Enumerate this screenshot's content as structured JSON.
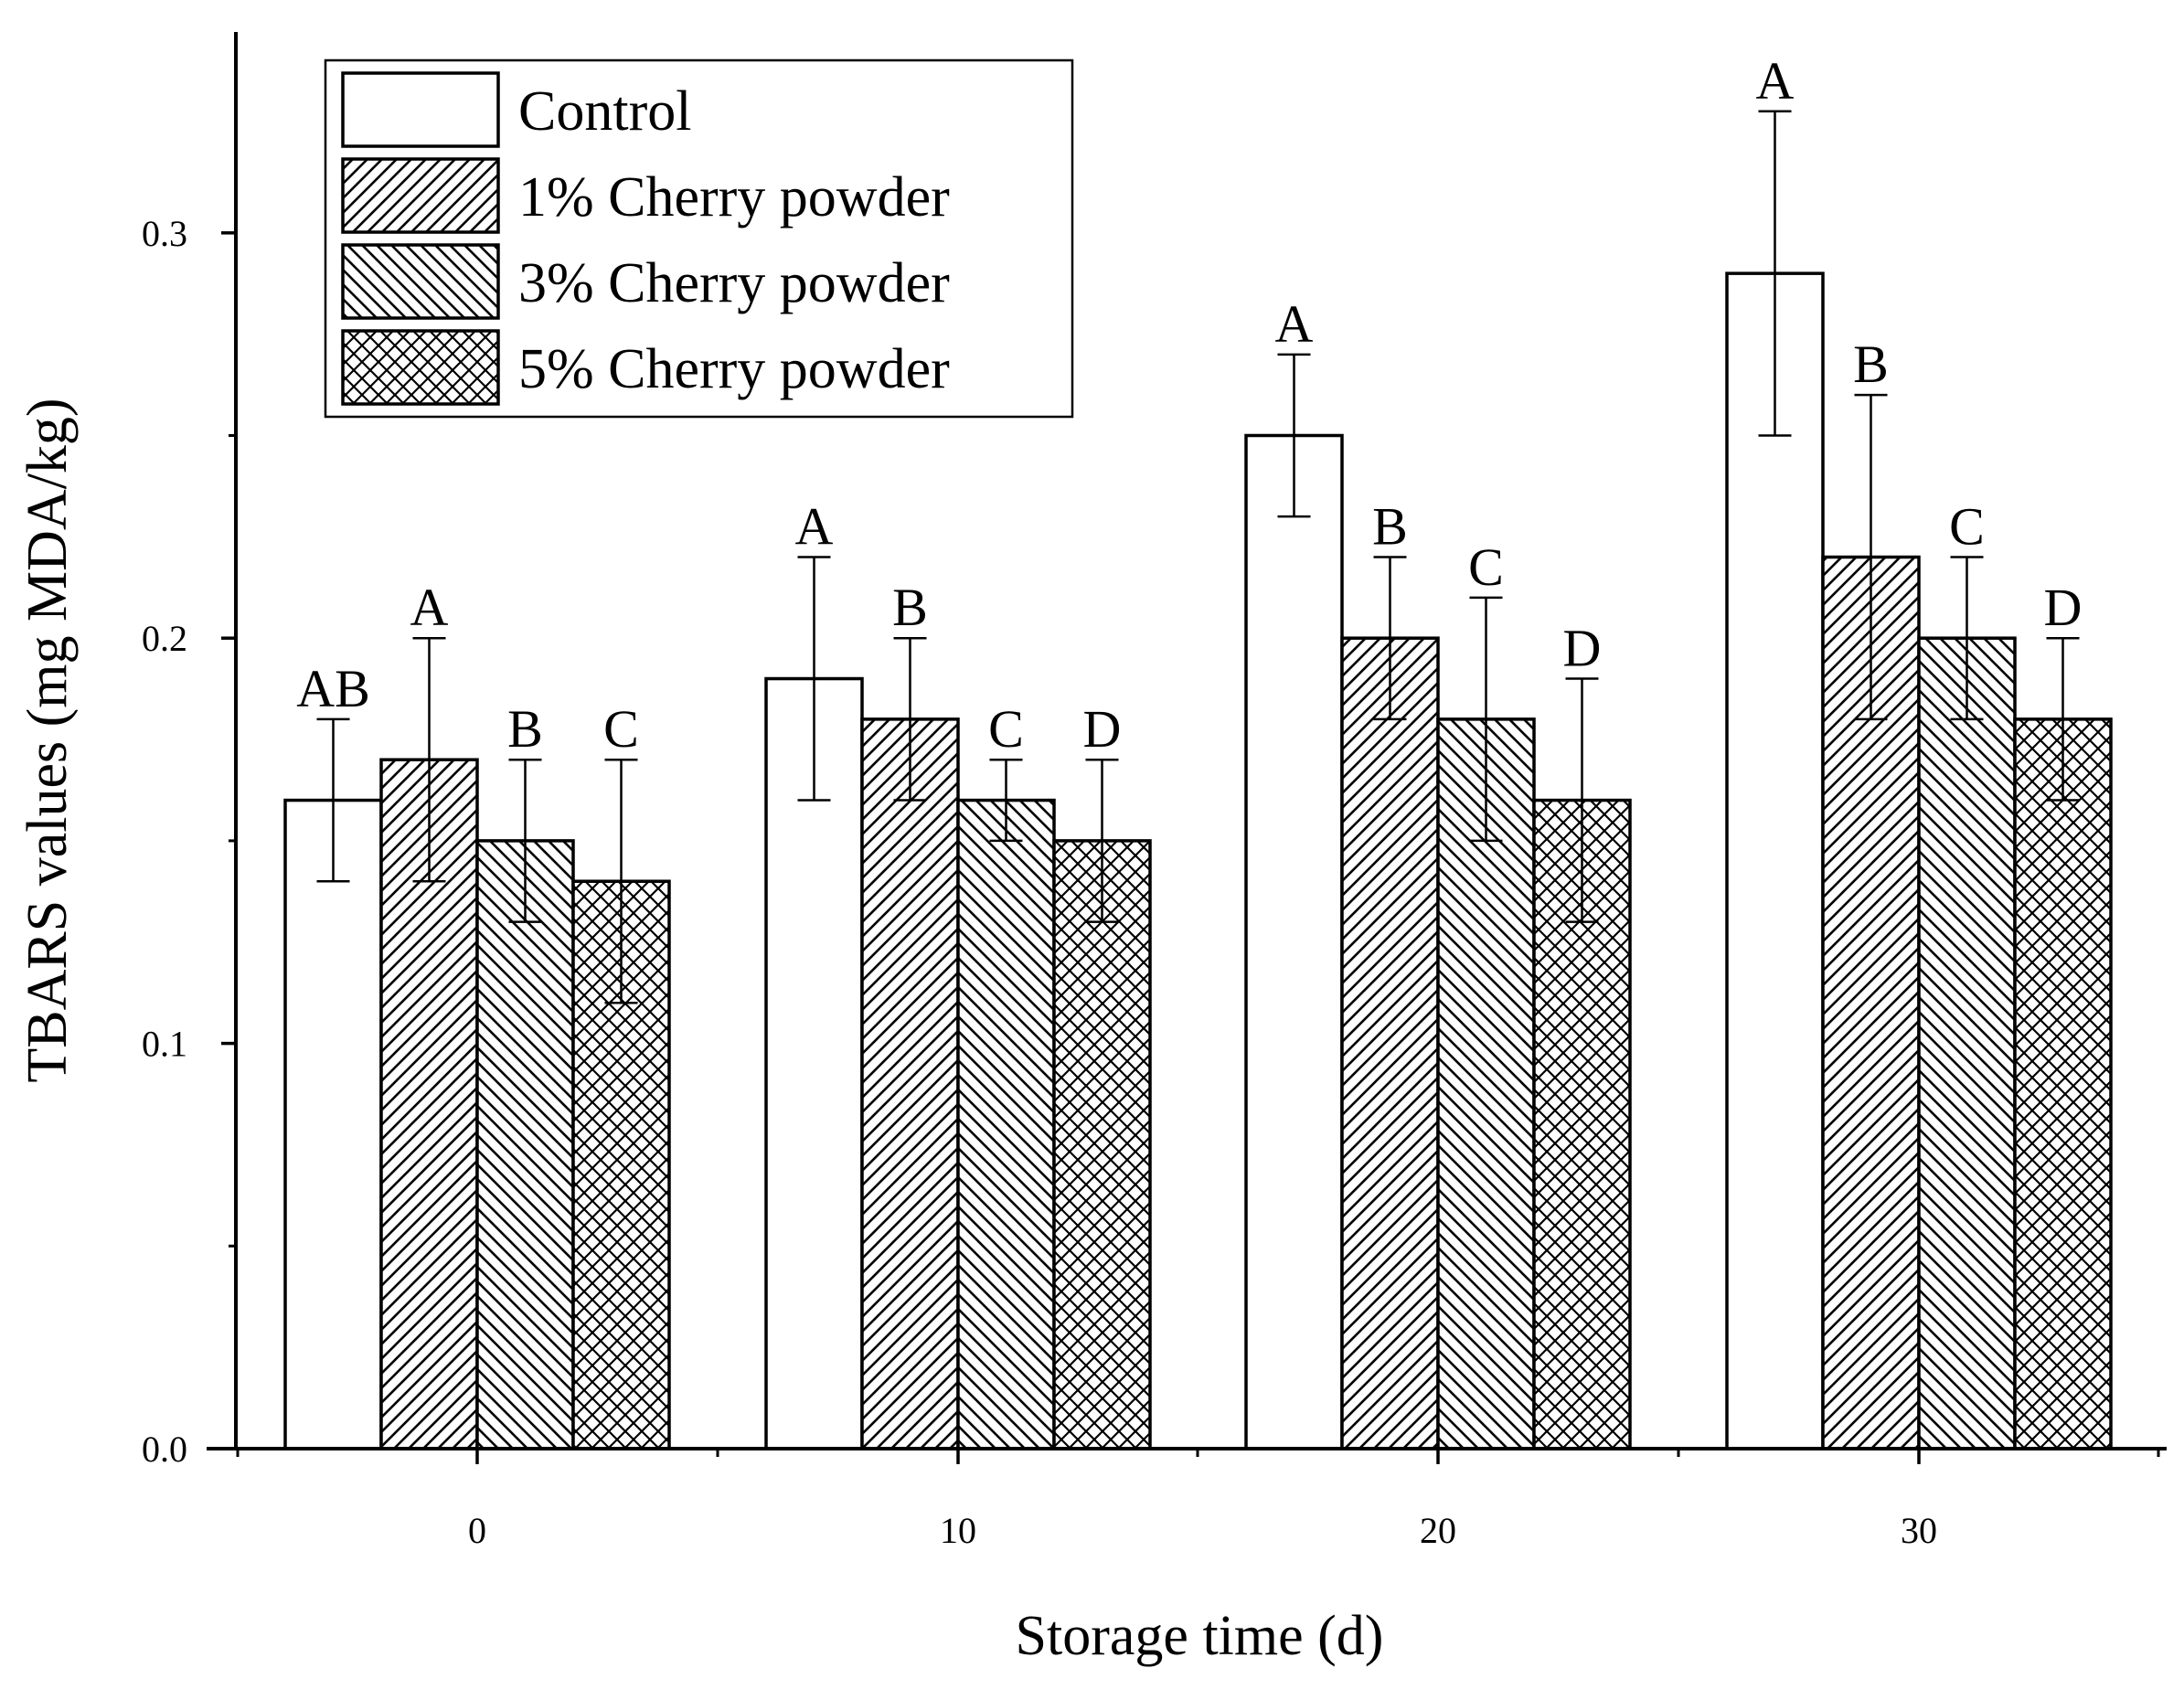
{
  "chart_data": {
    "type": "bar",
    "title": "",
    "xlabel": "Storage time (d)",
    "ylabel": "TBARS values (mg MDA/kg)",
    "ylim": [
      0.0,
      0.35
    ],
    "y_ticks": [
      0.0,
      0.1,
      0.2,
      0.3
    ],
    "y_tick_labels": [
      "0.0",
      "0.1",
      "0.2",
      "0.3"
    ],
    "categories": [
      "0",
      "10",
      "20",
      "30"
    ],
    "legend_position": "top-left",
    "series": [
      {
        "name": "Control",
        "pattern": "none",
        "values": [
          0.16,
          0.19,
          0.25,
          0.29
        ],
        "errors": [
          0.02,
          0.03,
          0.02,
          0.04
        ],
        "labels": [
          "AB",
          "A",
          "A",
          "A"
        ]
      },
      {
        "name": "1% Cherry powder",
        "pattern": "forward-diagonal",
        "values": [
          0.17,
          0.18,
          0.2,
          0.22
        ],
        "errors": [
          0.03,
          0.02,
          0.02,
          0.04
        ],
        "labels": [
          "A",
          "B",
          "B",
          "B"
        ]
      },
      {
        "name": "3% Cherry powder",
        "pattern": "back-diagonal",
        "values": [
          0.15,
          0.16,
          0.18,
          0.2
        ],
        "errors": [
          0.02,
          0.01,
          0.03,
          0.02
        ],
        "labels": [
          "B",
          "C",
          "C",
          "C"
        ]
      },
      {
        "name": "5% Cherry powder",
        "pattern": "crosshatch",
        "values": [
          0.14,
          0.15,
          0.16,
          0.18
        ],
        "errors": [
          0.03,
          0.02,
          0.03,
          0.02
        ],
        "labels": [
          "C",
          "D",
          "D",
          "D"
        ]
      }
    ]
  }
}
